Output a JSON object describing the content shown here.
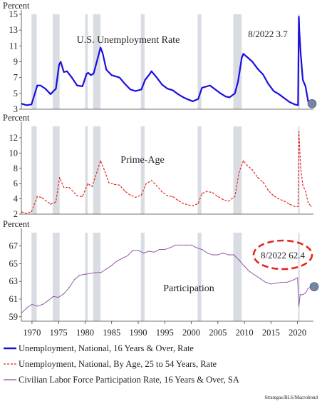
{
  "colors": {
    "unemployment": "#1a0ee0",
    "prime_age": "#e8231d",
    "participation": "#8a4c9e",
    "recession": "#d9dde3",
    "marker": "#7585a8",
    "callout": "#e8231d"
  },
  "x_ticks": [
    "1970",
    "1975",
    "1980",
    "1985",
    "1990",
    "1995",
    "2000",
    "2005",
    "2010",
    "2015",
    "2020"
  ],
  "legend": [
    {
      "label": "Unemployment, National, 16 Years & Over, Rate",
      "style": "solid",
      "color_key": "unemployment"
    },
    {
      "label": "Unemployment, National, By Age, 25 to 54 Years, Rate",
      "style": "dashed",
      "color_key": "prime_age"
    },
    {
      "label": "Civilian Labor Force Participation Rate, 16 Years & Over, SA",
      "style": "thin",
      "color_key": "participation"
    }
  ],
  "source": "Strategas/BLS/Macrobond",
  "chart_data": [
    {
      "type": "line",
      "ylabel": "Percent",
      "title": "U.S. Unemployment Rate",
      "annotation": "8/2022 3.7",
      "ylim": [
        3,
        15
      ],
      "yticks": [
        3,
        5,
        7,
        9,
        11,
        13,
        15
      ],
      "xlim": [
        1968,
        2023
      ],
      "recessions": [
        [
          1969.9,
          1970.9
        ],
        [
          1973.9,
          1975.2
        ],
        [
          1980.0,
          1980.5
        ],
        [
          1981.5,
          1982.9
        ],
        [
          1990.5,
          1991.2
        ],
        [
          2001.2,
          2001.9
        ],
        [
          2007.9,
          2009.5
        ],
        [
          2020.1,
          2020.4
        ]
      ],
      "series": [
        {
          "name": "Unemployment, National, 16 Years & Over, Rate",
          "x": [
            1968.0,
            1969.0,
            1969.9,
            1970.5,
            1971.0,
            1971.6,
            1972.5,
            1973.5,
            1974.5,
            1975.1,
            1975.4,
            1976.0,
            1976.6,
            1977.5,
            1978.5,
            1979.5,
            1980.3,
            1980.6,
            1981.1,
            1981.6,
            1982.2,
            1982.9,
            1983.3,
            1984.0,
            1985.0,
            1986.5,
            1987.5,
            1988.5,
            1989.5,
            1990.6,
            1991.3,
            1992.0,
            1992.5,
            1993.5,
            1994.5,
            1995.5,
            1996.5,
            1997.5,
            1998.5,
            1999.5,
            2000.3,
            2001.3,
            2002.0,
            2003.5,
            2004.5,
            2005.5,
            2006.5,
            2007.2,
            2008.2,
            2008.8,
            2009.5,
            2009.8,
            2010.5,
            2011.5,
            2012.5,
            2013.5,
            2014.5,
            2015.5,
            2016.5,
            2017.5,
            2018.5,
            2019.5,
            2020.1,
            2020.25,
            2020.33,
            2020.6,
            2021.0,
            2021.5,
            2022.0,
            2022.6
          ],
          "y": [
            3.7,
            3.5,
            3.6,
            4.9,
            6.0,
            6.0,
            5.6,
            4.9,
            5.6,
            8.6,
            9.0,
            7.7,
            7.8,
            7.0,
            6.0,
            5.9,
            7.5,
            7.6,
            7.3,
            7.5,
            9.0,
            10.8,
            10.1,
            8.0,
            7.3,
            7.0,
            6.2,
            5.5,
            5.3,
            5.5,
            6.7,
            7.3,
            7.8,
            7.0,
            6.1,
            5.6,
            5.4,
            4.9,
            4.5,
            4.2,
            4.0,
            4.3,
            5.7,
            6.0,
            5.5,
            5.0,
            4.6,
            4.5,
            5.0,
            6.5,
            9.5,
            10.0,
            9.6,
            9.0,
            8.1,
            7.4,
            6.2,
            5.3,
            4.9,
            4.4,
            3.9,
            3.6,
            3.5,
            14.7,
            13.0,
            10.0,
            6.7,
            5.9,
            4.0,
            3.7
          ]
        }
      ]
    },
    {
      "type": "line",
      "ylabel": "Percent",
      "title": "Prime-Age",
      "ylim": [
        2,
        13.5
      ],
      "yticks": [
        2,
        4,
        6,
        8,
        10,
        12
      ],
      "xlim": [
        1968,
        2023
      ],
      "recessions": [
        [
          1969.9,
          1970.9
        ],
        [
          1973.9,
          1975.2
        ],
        [
          1980.0,
          1980.5
        ],
        [
          1981.5,
          1982.9
        ],
        [
          1990.5,
          1991.2
        ],
        [
          2001.2,
          2001.9
        ],
        [
          2007.9,
          2009.5
        ],
        [
          2020.1,
          2020.4
        ]
      ],
      "series": [
        {
          "name": "Unemployment, National, By Age, 25 to 54 Years, Rate",
          "x": [
            1968.0,
            1969.0,
            1969.9,
            1970.5,
            1971.0,
            1971.8,
            1972.5,
            1973.5,
            1974.5,
            1975.2,
            1976.0,
            1977.0,
            1978.5,
            1979.5,
            1980.5,
            1981.3,
            1981.8,
            1982.9,
            1983.5,
            1984.5,
            1985.5,
            1986.5,
            1987.5,
            1988.5,
            1989.5,
            1990.6,
            1991.5,
            1992.5,
            1993.5,
            1994.5,
            1995.5,
            1996.5,
            1997.5,
            1998.5,
            1999.5,
            2000.3,
            2001.3,
            2002.0,
            2003.0,
            2004.0,
            2005.0,
            2006.0,
            2007.0,
            2008.2,
            2009.0,
            2009.8,
            2010.5,
            2011.5,
            2012.5,
            2013.5,
            2014.5,
            2015.5,
            2016.5,
            2017.5,
            2018.5,
            2019.5,
            2020.1,
            2020.25,
            2020.35,
            2020.6,
            2021.0,
            2021.5,
            2022.0,
            2022.6
          ],
          "y": [
            2.3,
            2.1,
            2.3,
            3.4,
            4.3,
            4.2,
            3.8,
            3.3,
            3.6,
            6.8,
            5.5,
            5.5,
            4.4,
            4.3,
            6.0,
            5.6,
            6.6,
            9.0,
            8.0,
            6.1,
            5.9,
            5.8,
            5.0,
            4.5,
            4.2,
            4.5,
            6.0,
            6.4,
            5.7,
            4.9,
            4.4,
            4.3,
            3.8,
            3.4,
            3.2,
            3.1,
            3.4,
            4.7,
            5.0,
            4.8,
            4.3,
            3.9,
            3.7,
            4.3,
            7.5,
            9.0,
            8.4,
            7.8,
            6.8,
            6.2,
            5.1,
            4.4,
            4.0,
            3.7,
            3.3,
            3.0,
            3.0,
            12.8,
            11.5,
            8.0,
            5.8,
            5.0,
            3.5,
            3.0
          ]
        }
      ]
    },
    {
      "type": "line",
      "ylabel": "Percent",
      "title": "Participation",
      "annotation": "8/2022 62.4",
      "ylim": [
        58.5,
        68.5
      ],
      "yticks": [
        59,
        61,
        63,
        65,
        67
      ],
      "xlim": [
        1968,
        2023
      ],
      "recessions": [
        [
          1969.9,
          1970.9
        ],
        [
          1973.9,
          1975.2
        ],
        [
          1980.0,
          1980.5
        ],
        [
          1981.5,
          1982.9
        ],
        [
          1990.5,
          1991.2
        ],
        [
          2001.2,
          2001.9
        ],
        [
          2007.9,
          2009.5
        ],
        [
          2020.1,
          2020.4
        ]
      ],
      "series": [
        {
          "name": "Civilian Labor Force Participation Rate, 16 Years & Over, SA",
          "x": [
            1968.0,
            1969.0,
            1970.0,
            1971.0,
            1972.0,
            1973.0,
            1974.0,
            1975.0,
            1976.0,
            1977.0,
            1978.0,
            1979.0,
            1980.0,
            1981.0,
            1982.0,
            1983.0,
            1984.0,
            1985.0,
            1986.0,
            1987.0,
            1988.0,
            1989.0,
            1990.0,
            1991.0,
            1992.0,
            1993.0,
            1994.0,
            1995.0,
            1996.0,
            1997.0,
            1998.0,
            1999.0,
            2000.0,
            2001.0,
            2002.0,
            2003.0,
            2004.0,
            2005.0,
            2006.0,
            2007.0,
            2008.0,
            2009.0,
            2010.0,
            2011.0,
            2012.0,
            2013.0,
            2014.0,
            2015.0,
            2016.0,
            2017.0,
            2018.0,
            2019.0,
            2020.0,
            2020.25,
            2020.5,
            2021.0,
            2021.5,
            2022.0,
            2022.6
          ],
          "y": [
            59.4,
            60.0,
            60.4,
            60.2,
            60.4,
            60.8,
            61.3,
            61.2,
            61.6,
            62.3,
            63.2,
            63.7,
            63.8,
            63.9,
            64.0,
            64.0,
            64.4,
            64.8,
            65.3,
            65.6,
            65.9,
            66.5,
            66.5,
            66.2,
            66.4,
            66.3,
            66.6,
            66.6,
            66.8,
            67.1,
            67.1,
            67.1,
            67.1,
            66.8,
            66.6,
            66.2,
            66.0,
            66.0,
            66.2,
            66.0,
            66.0,
            65.4,
            64.7,
            64.1,
            63.7,
            63.3,
            62.9,
            62.7,
            62.8,
            62.9,
            62.9,
            63.1,
            63.4,
            60.2,
            61.5,
            61.5,
            61.7,
            62.2,
            62.4
          ]
        }
      ]
    }
  ]
}
